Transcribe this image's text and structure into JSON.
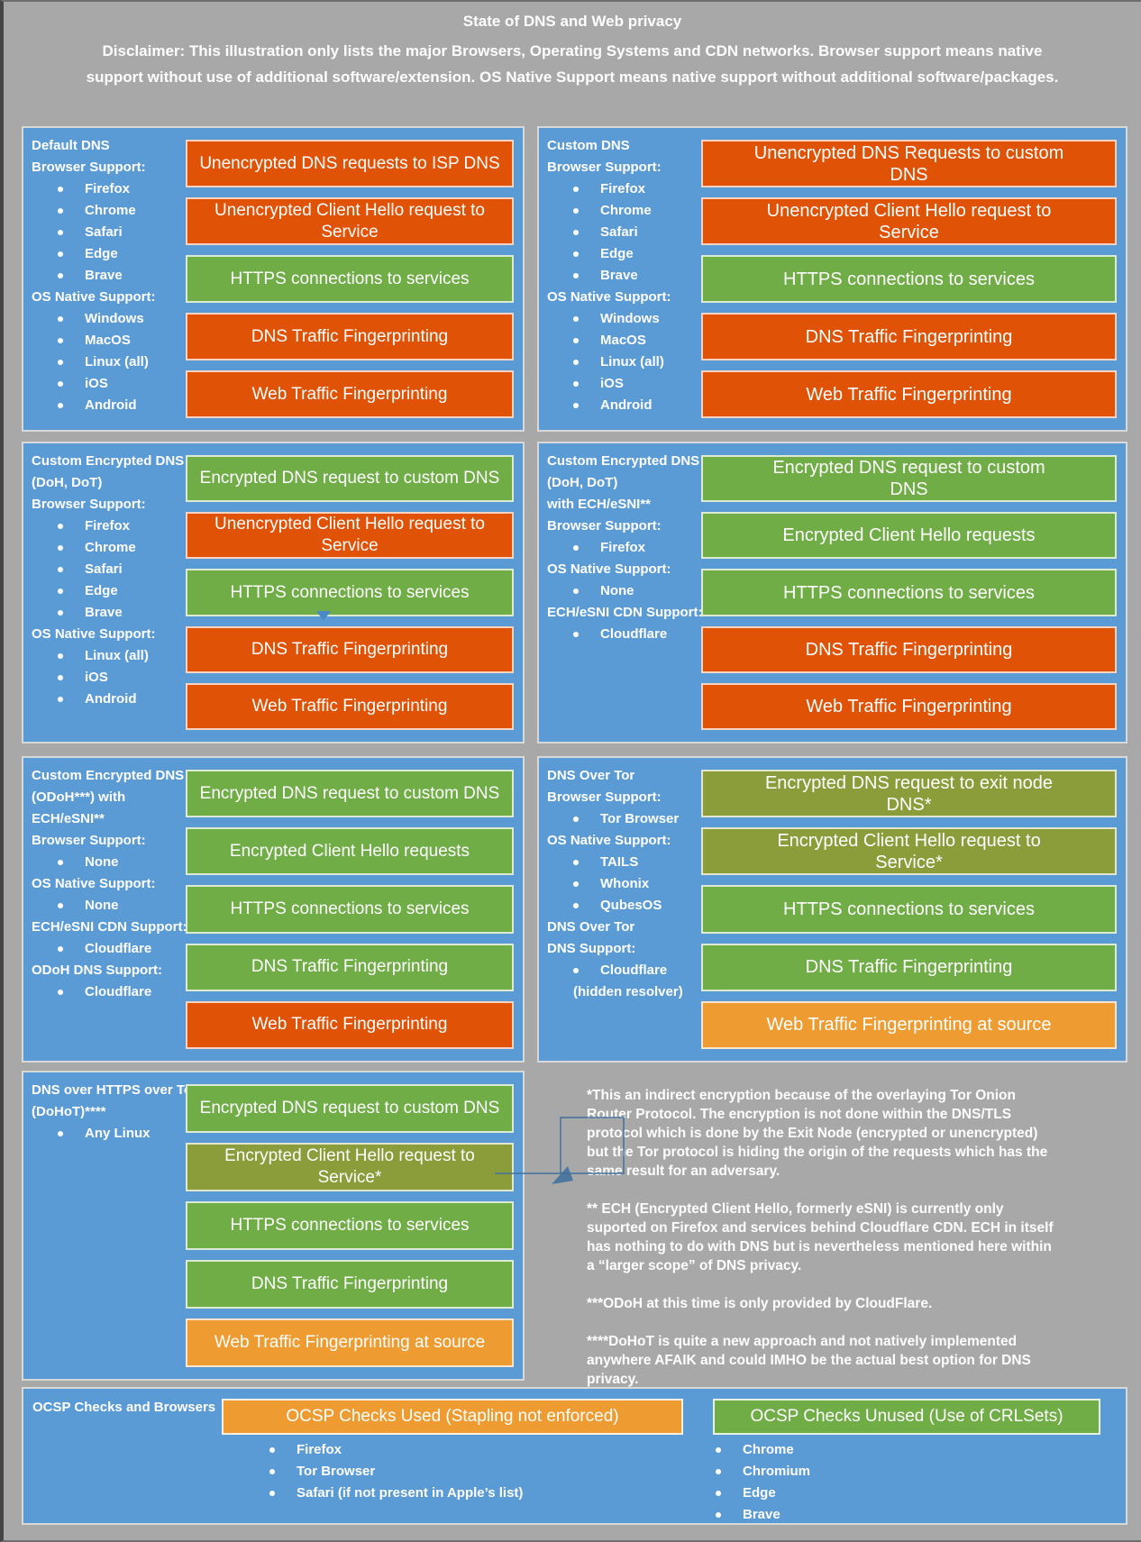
{
  "header": {
    "title": "State of DNS and Web privacy",
    "disclaimer": "Disclaimer: This illustration only lists the major Browsers, Operating Systems and CDN networks. Browser support means native support without use of additional software/extension. OS Native Support means native support without additional software/packages."
  },
  "colors": {
    "panel_blue": "#5B9BD5",
    "background_gray": "#A8A8A8",
    "red": "#E05206",
    "green": "#70AD47",
    "olive": "#8B9C3B",
    "amber": "#EE9C31",
    "callout_blue": "#41719C"
  },
  "panels": [
    {
      "id": "default-dns",
      "info": [
        {
          "type": "heading",
          "text": "Default DNS"
        },
        {
          "type": "heading",
          "text": "Browser Support:"
        },
        {
          "type": "item",
          "text": "Firefox"
        },
        {
          "type": "item",
          "text": "Chrome"
        },
        {
          "type": "item",
          "text": "Safari"
        },
        {
          "type": "item",
          "text": "Edge"
        },
        {
          "type": "item",
          "text": "Brave"
        },
        {
          "type": "heading",
          "text": "OS Native Support:"
        },
        {
          "type": "item",
          "text": "Windows"
        },
        {
          "type": "item",
          "text": "MacOS"
        },
        {
          "type": "item",
          "text": "Linux (all)"
        },
        {
          "type": "item",
          "text": "iOS"
        },
        {
          "type": "item",
          "text": "Android"
        }
      ],
      "boxes": [
        {
          "label": "Unencrypted DNS requests to ISP DNS",
          "color": "red"
        },
        {
          "label": "Unencrypted Client Hello request to Service",
          "color": "red"
        },
        {
          "label": "HTTPS connections to services",
          "color": "green"
        },
        {
          "label": "DNS Traffic Fingerprinting",
          "color": "red"
        },
        {
          "label": "Web Traffic Fingerprinting",
          "color": "red"
        }
      ]
    },
    {
      "id": "custom-dns",
      "info": [
        {
          "type": "heading",
          "text": "Custom DNS"
        },
        {
          "type": "heading",
          "text": "Browser Support:"
        },
        {
          "type": "item",
          "text": "Firefox"
        },
        {
          "type": "item",
          "text": "Chrome"
        },
        {
          "type": "item",
          "text": "Safari"
        },
        {
          "type": "item",
          "text": "Edge"
        },
        {
          "type": "item",
          "text": "Brave"
        },
        {
          "type": "heading",
          "text": "OS Native Support:"
        },
        {
          "type": "item",
          "text": "Windows"
        },
        {
          "type": "item",
          "text": "MacOS"
        },
        {
          "type": "item",
          "text": "Linux (all)"
        },
        {
          "type": "item",
          "text": "iOS"
        },
        {
          "type": "item",
          "text": "Android"
        }
      ],
      "boxes": [
        {
          "label": "Unencrypted DNS Requests to custom DNS",
          "color": "red"
        },
        {
          "label": "Unencrypted Client Hello request to Service",
          "color": "red"
        },
        {
          "label": "HTTPS connections to services",
          "color": "green"
        },
        {
          "label": "DNS Traffic Fingerprinting",
          "color": "red"
        },
        {
          "label": "Web Traffic Fingerprinting",
          "color": "red"
        }
      ]
    },
    {
      "id": "custom-encrypted-dns-doh-dot",
      "info": [
        {
          "type": "heading",
          "text": "Custom Encrypted DNS"
        },
        {
          "type": "heading",
          "text": "(DoH, DoT)"
        },
        {
          "type": "heading",
          "text": "Browser Support:"
        },
        {
          "type": "item",
          "text": "Firefox"
        },
        {
          "type": "item",
          "text": "Chrome"
        },
        {
          "type": "item",
          "text": "Safari"
        },
        {
          "type": "item",
          "text": "Edge"
        },
        {
          "type": "item",
          "text": "Brave"
        },
        {
          "type": "heading",
          "text": "OS Native Support:"
        },
        {
          "type": "item",
          "text": "Linux (all)"
        },
        {
          "type": "item",
          "text": "iOS"
        },
        {
          "type": "item",
          "text": "Android"
        }
      ],
      "boxes": [
        {
          "label": "Encrypted DNS request to custom DNS",
          "color": "green"
        },
        {
          "label": "Unencrypted Client Hello request to Service",
          "color": "red"
        },
        {
          "label": "HTTPS connections to services",
          "color": "green"
        },
        {
          "label": "DNS Traffic Fingerprinting",
          "color": "red"
        },
        {
          "label": "Web Traffic Fingerprinting",
          "color": "red"
        }
      ]
    },
    {
      "id": "custom-encrypted-dns-doh-dot-ech",
      "info": [
        {
          "type": "heading",
          "text": "Custom Encrypted DNS"
        },
        {
          "type": "heading",
          "text": "(DoH, DoT)"
        },
        {
          "type": "heading",
          "text": "with ECH/eSNI**"
        },
        {
          "type": "heading",
          "text": "Browser Support:"
        },
        {
          "type": "item",
          "text": "Firefox"
        },
        {
          "type": "heading",
          "text": "OS Native Support:"
        },
        {
          "type": "item",
          "text": "None"
        },
        {
          "type": "heading",
          "text": "ECH/eSNI CDN Support:"
        },
        {
          "type": "item",
          "text": "Cloudflare"
        }
      ],
      "boxes": [
        {
          "label": "Encrypted DNS request to custom DNS",
          "color": "green"
        },
        {
          "label": "Encrypted Client Hello requests",
          "color": "green"
        },
        {
          "label": "HTTPS connections to services",
          "color": "green"
        },
        {
          "label": "DNS Traffic Fingerprinting",
          "color": "red"
        },
        {
          "label": "Web Traffic Fingerprinting",
          "color": "red"
        }
      ]
    },
    {
      "id": "custom-encrypted-dns-odoh-ech",
      "info": [
        {
          "type": "heading",
          "text": "Custom Encrypted DNS"
        },
        {
          "type": "heading",
          "text": "(ODoH***) with"
        },
        {
          "type": "heading",
          "text": "ECH/eSNI**"
        },
        {
          "type": "heading",
          "text": "Browser Support:"
        },
        {
          "type": "item",
          "text": "None"
        },
        {
          "type": "heading",
          "text": "OS Native Support:"
        },
        {
          "type": "item",
          "text": "None"
        },
        {
          "type": "heading",
          "text": "ECH/eSNI CDN Support:"
        },
        {
          "type": "item",
          "text": "Cloudflare"
        },
        {
          "type": "heading",
          "text": "ODoH DNS Support:"
        },
        {
          "type": "item",
          "text": "Cloudflare"
        }
      ],
      "boxes": [
        {
          "label": "Encrypted DNS request to custom DNS",
          "color": "green"
        },
        {
          "label": "Encrypted Client Hello requests",
          "color": "green"
        },
        {
          "label": "HTTPS connections to services",
          "color": "green"
        },
        {
          "label": "DNS Traffic Fingerprinting",
          "color": "green"
        },
        {
          "label": "Web Traffic Fingerprinting",
          "color": "red"
        }
      ]
    },
    {
      "id": "dns-over-tor",
      "info": [
        {
          "type": "heading",
          "text": "DNS Over Tor"
        },
        {
          "type": "heading",
          "text": "Browser Support:"
        },
        {
          "type": "item",
          "text": "Tor Browser"
        },
        {
          "type": "heading",
          "text": "OS Native Support:"
        },
        {
          "type": "item",
          "text": "TAILS"
        },
        {
          "type": "item",
          "text": "Whonix"
        },
        {
          "type": "item",
          "text": "QubesOS"
        },
        {
          "type": "heading",
          "text": "DNS Over Tor"
        },
        {
          "type": "heading",
          "text": "DNS Support:"
        },
        {
          "type": "item",
          "text": "Cloudflare"
        },
        {
          "type": "note",
          "text": "(hidden resolver)"
        }
      ],
      "boxes": [
        {
          "label": "Encrypted DNS request to exit node DNS*",
          "color": "olive"
        },
        {
          "label": "Encrypted Client Hello request to Service*",
          "color": "olive"
        },
        {
          "label": "HTTPS connections to services",
          "color": "green"
        },
        {
          "label": "DNS Traffic Fingerprinting",
          "color": "green"
        },
        {
          "label": "Web Traffic Fingerprinting at source",
          "color": "amber"
        }
      ]
    },
    {
      "id": "dohot",
      "info": [
        {
          "type": "heading",
          "text": "DNS over HTTPS over Tor"
        },
        {
          "type": "heading",
          "text": "(DoHoT)****"
        },
        {
          "type": "item",
          "text": "Any Linux"
        }
      ],
      "boxes": [
        {
          "label": "Encrypted DNS request to custom DNS",
          "color": "green"
        },
        {
          "label": "Encrypted Client Hello request to Service*",
          "color": "olive"
        },
        {
          "label": "HTTPS connections to services",
          "color": "green"
        },
        {
          "label": "DNS Traffic Fingerprinting",
          "color": "green"
        },
        {
          "label": "Web Traffic Fingerprinting at source",
          "color": "amber"
        }
      ]
    }
  ],
  "footnotes": [
    "*This an indirect encryption because of the overlaying Tor Onion Router Protocol. The encryption is not done within the DNS/TLS protocol which is done by the Exit Node (encrypted or unencrypted) but the Tor protocol is hiding the origin of the requests which has the same result for an adversary.",
    "** ECH (Encrypted Client Hello, formerly eSNI) is currently only suported on Firefox and services behind Cloudflare CDN. ECH in itself has nothing to do with DNS but is nevertheless mentioned here within a “larger scope” of DNS privacy.",
    "***ODoH at this time is only provided by CloudFlare.",
    "****DoHoT is quite a new approach and not natively implemented anywhere AFAIK and could IMHO be the actual best option for DNS privacy."
  ],
  "ocsp": {
    "title": "OCSP Checks and Browsers",
    "used": {
      "label": "OCSP Checks Used (Stapling not enforced)",
      "color": "amber",
      "items": [
        "Firefox",
        "Tor Browser",
        "Safari (if not present in Apple’s list)"
      ]
    },
    "unused": {
      "label": "OCSP Checks Unused (Use of CRLSets)",
      "color": "green",
      "items": [
        "Chrome",
        "Chromium",
        "Edge",
        "Brave"
      ]
    }
  }
}
